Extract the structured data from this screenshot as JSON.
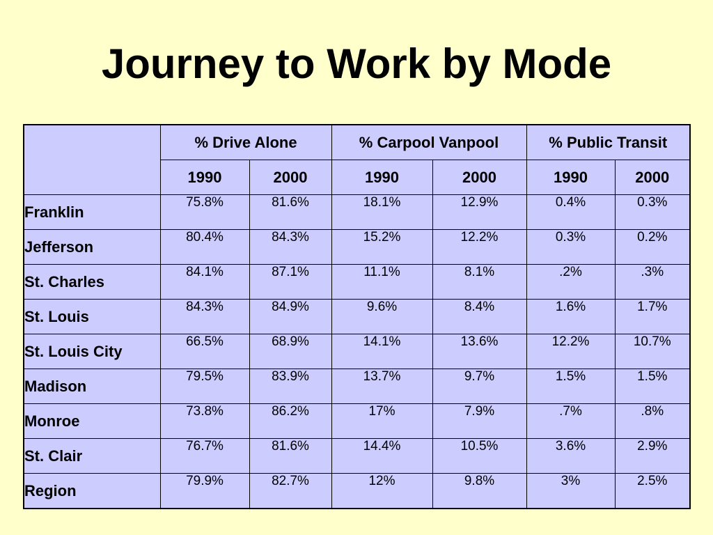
{
  "title": "Journey to Work by Mode",
  "table": {
    "groups": [
      "% Drive Alone",
      "% Carpool Vanpool",
      "% Public Transit"
    ],
    "years": [
      "1990",
      "2000",
      "1990",
      "2000",
      "1990",
      "2000"
    ],
    "rows": [
      {
        "label": "Franklin",
        "values": [
          "75.8%",
          "81.6%",
          "18.1%",
          "12.9%",
          "0.4%",
          "0.3%"
        ]
      },
      {
        "label": "Jefferson",
        "values": [
          "80.4%",
          "84.3%",
          "15.2%",
          "12.2%",
          "0.3%",
          "0.2%"
        ]
      },
      {
        "label": "St. Charles",
        "values": [
          "84.1%",
          "87.1%",
          "11.1%",
          "8.1%",
          ".2%",
          ".3%"
        ]
      },
      {
        "label": "St. Louis",
        "values": [
          "84.3%",
          "84.9%",
          "9.6%",
          "8.4%",
          "1.6%",
          "1.7%"
        ]
      },
      {
        "label": "St. Louis City",
        "values": [
          "66.5%",
          "68.9%",
          "14.1%",
          "13.6%",
          "12.2%",
          "10.7%"
        ]
      },
      {
        "label": "Madison",
        "values": [
          "79.5%",
          "83.9%",
          "13.7%",
          "9.7%",
          "1.5%",
          "1.5%"
        ]
      },
      {
        "label": "Monroe",
        "values": [
          "73.8%",
          "86.2%",
          "17%",
          "7.9%",
          ".7%",
          ".8%"
        ]
      },
      {
        "label": "St. Clair",
        "values": [
          "76.7%",
          "81.6%",
          "14.4%",
          "10.5%",
          "3.6%",
          "2.9%"
        ]
      },
      {
        "label": "Region",
        "values": [
          "79.9%",
          "82.7%",
          "12%",
          "9.8%",
          "3%",
          "2.5%"
        ]
      }
    ]
  },
  "colors": {
    "background": "#ffffcc",
    "table_fill": "#ccccff",
    "border": "#000000",
    "text": "#000000"
  }
}
